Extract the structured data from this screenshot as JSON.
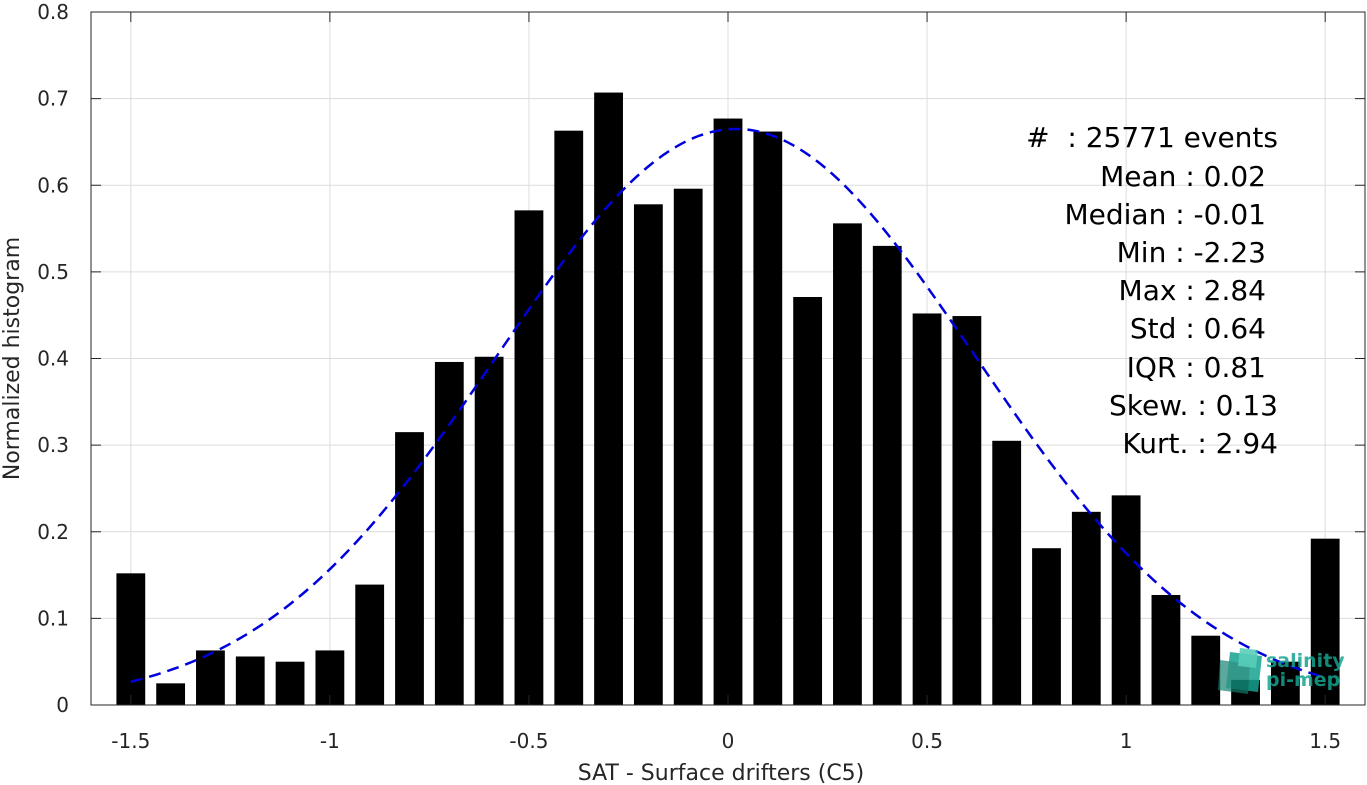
{
  "chart_data": {
    "type": "bar",
    "xlabel": "SAT - Surface drifters (C5)",
    "ylabel": "Normalized histogram",
    "xlim": [
      -1.6,
      1.6
    ],
    "ylim": [
      0,
      0.8
    ],
    "xticks": [
      -1.5,
      -1,
      -0.5,
      0,
      0.5,
      1,
      1.5
    ],
    "xtick_labels": [
      "-1.5",
      "-1",
      "-0.5",
      "0",
      "0.5",
      "1",
      "1.5"
    ],
    "yticks": [
      0,
      0.1,
      0.2,
      0.3,
      0.4,
      0.5,
      0.6,
      0.7,
      0.8
    ],
    "ytick_labels": [
      "0",
      "0.1",
      "0.2",
      "0.3",
      "0.4",
      "0.5",
      "0.6",
      "0.7",
      "0.8"
    ],
    "grid": true,
    "bar_color": "#000000",
    "bins": [
      -1.5,
      -1.4,
      -1.3,
      -1.2,
      -1.1,
      -1.0,
      -0.9,
      -0.8,
      -0.7,
      -0.6,
      -0.5,
      -0.4,
      -0.3,
      -0.2,
      -0.1,
      0.0,
      0.1,
      0.2,
      0.3,
      0.4,
      0.5,
      0.6,
      0.7,
      0.8,
      0.9,
      1.0,
      1.1,
      1.2,
      1.3,
      1.4,
      1.5
    ],
    "values": [
      0.152,
      0.025,
      0.063,
      0.056,
      0.05,
      0.063,
      0.139,
      0.315,
      0.396,
      0.402,
      0.571,
      0.663,
      0.707,
      0.578,
      0.596,
      0.677,
      0.662,
      0.471,
      0.556,
      0.53,
      0.452,
      0.449,
      0.305,
      0.181,
      0.223,
      0.242,
      0.127,
      0.08,
      0.029,
      0.05,
      0.192
    ],
    "fit": {
      "name": "Gaussian fit",
      "color": "#0000dd",
      "style": "dashed",
      "mean": 0.02,
      "std": 0.6,
      "peak": 0.665
    },
    "stats": [
      "#  : 25771 events",
      "Mean : 0.02",
      "Median : -0.01",
      "Min : -2.23",
      "Max : 2.84",
      "Std : 0.64",
      "IQR : 0.81",
      "Skew. : 0.13",
      "Kurt. : 2.94"
    ]
  },
  "logo": {
    "line1": "salinity",
    "line2": "pi-mep",
    "color": "#16a38f"
  }
}
